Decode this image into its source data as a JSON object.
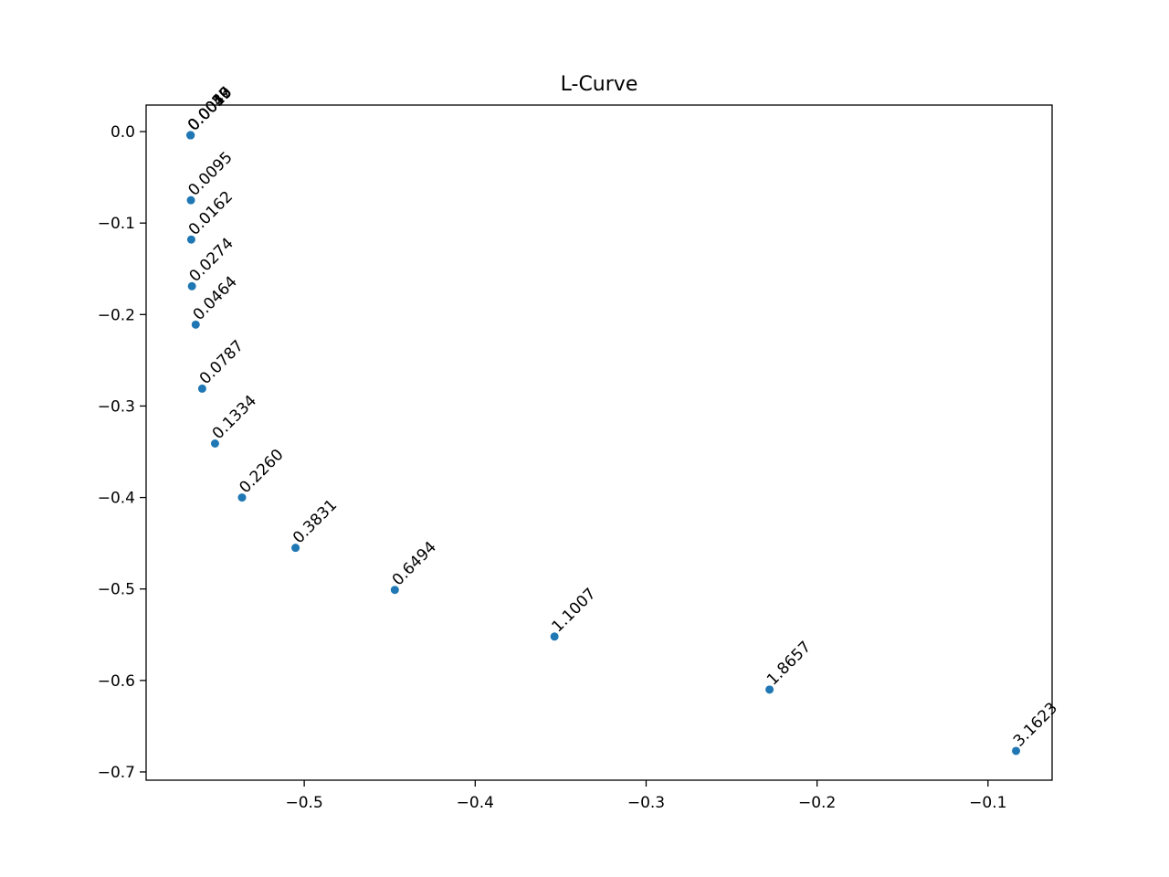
{
  "chart_data": {
    "type": "scatter",
    "title": "L-Curve",
    "xlabel": "",
    "ylabel": "",
    "xlim": [
      -0.5925,
      -0.0625
    ],
    "ylim": [
      -0.709,
      0.029
    ],
    "xticks": [
      {
        "value": -0.5,
        "label": "−0.5"
      },
      {
        "value": -0.4,
        "label": "−0.4"
      },
      {
        "value": -0.3,
        "label": "−0.3"
      },
      {
        "value": -0.2,
        "label": "−0.2"
      },
      {
        "value": -0.1,
        "label": "−0.1"
      }
    ],
    "yticks": [
      {
        "value": 0.0,
        "label": "0.0"
      },
      {
        "value": -0.1,
        "label": "−0.1"
      },
      {
        "value": -0.2,
        "label": "−0.2"
      },
      {
        "value": -0.3,
        "label": "−0.3"
      },
      {
        "value": -0.4,
        "label": "−0.4"
      },
      {
        "value": -0.5,
        "label": "−0.5"
      },
      {
        "value": -0.6,
        "label": "−0.6"
      },
      {
        "value": -0.7,
        "label": "−0.7"
      }
    ],
    "grid": false,
    "marker_color": "#1f77b4",
    "points": [
      {
        "x": -0.5665,
        "y": -0.004,
        "label": "0.0010"
      },
      {
        "x": -0.5665,
        "y": -0.004,
        "label": "0.0017"
      },
      {
        "x": -0.5665,
        "y": -0.004,
        "label": "0.0029"
      },
      {
        "x": -0.5665,
        "y": -0.004,
        "label": "0.0049"
      },
      {
        "x": -0.5665,
        "y": -0.004,
        "label": "0.0056"
      },
      {
        "x": -0.5663,
        "y": -0.075,
        "label": "0.0095"
      },
      {
        "x": -0.5661,
        "y": -0.118,
        "label": "0.0162"
      },
      {
        "x": -0.5657,
        "y": -0.169,
        "label": "0.0274"
      },
      {
        "x": -0.5635,
        "y": -0.211,
        "label": "0.0464"
      },
      {
        "x": -0.5597,
        "y": -0.281,
        "label": "0.0787"
      },
      {
        "x": -0.5522,
        "y": -0.341,
        "label": "0.1334"
      },
      {
        "x": -0.5364,
        "y": -0.4,
        "label": "0.2260"
      },
      {
        "x": -0.5051,
        "y": -0.455,
        "label": "0.3831"
      },
      {
        "x": -0.447,
        "y": -0.501,
        "label": "0.6494"
      },
      {
        "x": -0.3536,
        "y": -0.552,
        "label": "1.1007"
      },
      {
        "x": -0.2278,
        "y": -0.61,
        "label": "1.8657"
      },
      {
        "x": -0.0836,
        "y": -0.677,
        "label": "3.1623"
      }
    ]
  }
}
